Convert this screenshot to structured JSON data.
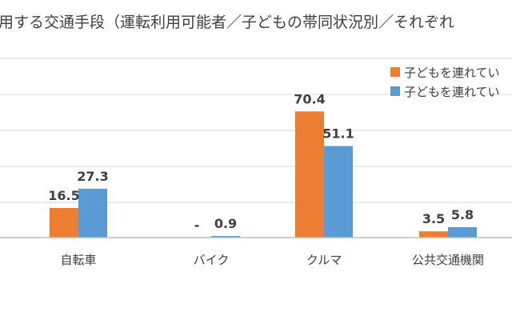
{
  "chart_data": {
    "type": "bar",
    "title": "用する交通手段（運転利用可能者／子どもの帯同状況別／それぞれ",
    "categories": [
      "自転車",
      "バイク",
      "クルマ",
      "公共交通機関"
    ],
    "series": [
      {
        "name": "子どもを連れてい",
        "color": "#ed7d31",
        "values": [
          16.5,
          0,
          70.4,
          3.5
        ],
        "labels": [
          "16.5",
          "-",
          "70.4",
          "3.5"
        ]
      },
      {
        "name": "子どもを連れてい",
        "color": "#5b9bd5",
        "values": [
          27.3,
          0.9,
          51.1,
          5.8
        ],
        "labels": [
          "27.3",
          "0.9",
          "51.1",
          "5.8"
        ]
      }
    ],
    "ylim": [
      0,
      100
    ],
    "grid": true,
    "legend": "top-right"
  }
}
